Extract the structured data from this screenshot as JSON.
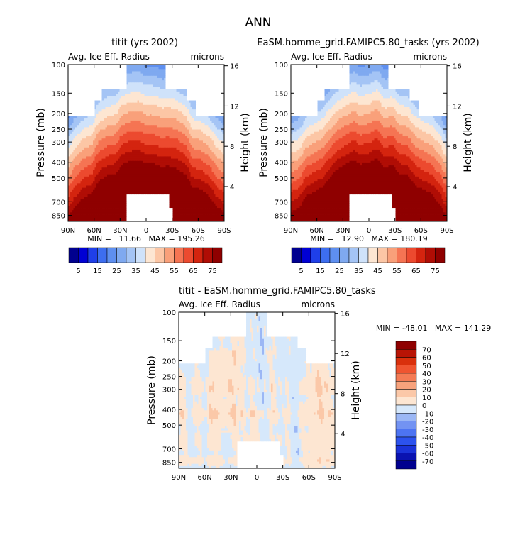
{
  "figure": {
    "title": "ANN"
  },
  "chart_data": [
    {
      "type": "heatmap",
      "title": "titit (yrs 2002)",
      "subtitle_left": "Avg. Ice Eff. Radius",
      "subtitle_right": "microns",
      "xlabel": "",
      "ylabel": "Pressure (mb)",
      "y2label": "Height (km)",
      "x_ticks": [
        "90N",
        "60N",
        "30N",
        "0",
        "30S",
        "60S",
        "90S"
      ],
      "y_ticks": [
        "100",
        "150",
        "200",
        "250",
        "300",
        "400",
        "500",
        "700",
        "850"
      ],
      "y2_ticks": [
        "16",
        "12",
        "8",
        "4"
      ],
      "stats": "MIN =   11.66   MAX = 195.26",
      "colorbar_labels": [
        "5",
        "15",
        "25",
        "35",
        "45",
        "55",
        "65",
        "75"
      ],
      "colorbar_levels": [
        5,
        10,
        15,
        20,
        25,
        30,
        35,
        40,
        45,
        50,
        55,
        60,
        65,
        70,
        75
      ],
      "min": 11.66,
      "max": 195.26,
      "lat_range": [
        90,
        -90
      ],
      "pressure_range": [
        100,
        925
      ]
    },
    {
      "type": "heatmap",
      "title": "EaSM.homme_grid.FAMIPC5.80_tasks (yrs 2002)",
      "subtitle_left": "Avg. Ice Eff. Radius",
      "subtitle_right": "microns",
      "xlabel": "",
      "ylabel": "Pressure (mb)",
      "y2label": "Height (km)",
      "x_ticks": [
        "90N",
        "60N",
        "30N",
        "0",
        "30S",
        "60S",
        "90S"
      ],
      "y_ticks": [
        "100",
        "150",
        "200",
        "250",
        "300",
        "400",
        "500",
        "700",
        "850"
      ],
      "y2_ticks": [
        "16",
        "12",
        "8",
        "4"
      ],
      "stats": "MIN =   12.90   MAX = 180.19",
      "colorbar_labels": [
        "5",
        "15",
        "25",
        "35",
        "45",
        "55",
        "65",
        "75"
      ],
      "colorbar_levels": [
        5,
        10,
        15,
        20,
        25,
        30,
        35,
        40,
        45,
        50,
        55,
        60,
        65,
        70,
        75
      ],
      "min": 12.9,
      "max": 180.19,
      "lat_range": [
        90,
        -90
      ],
      "pressure_range": [
        100,
        925
      ]
    },
    {
      "type": "heatmap",
      "title": "titit - EaSM.homme_grid.FAMIPC5.80_tasks",
      "subtitle_left": "Avg. Ice Eff. Radius",
      "subtitle_right": "microns",
      "xlabel": "",
      "ylabel": "Pressure (mb)",
      "y2label": "Height (km)",
      "x_ticks": [
        "90N",
        "60N",
        "30N",
        "0",
        "30S",
        "60S",
        "90S"
      ],
      "y_ticks": [
        "100",
        "150",
        "200",
        "250",
        "300",
        "400",
        "500",
        "700",
        "850"
      ],
      "y2_ticks": [
        "16",
        "12",
        "8",
        "4"
      ],
      "stats": "MIN = -48.01   MAX = 141.29",
      "colorbar_labels": [
        "70",
        "60",
        "50",
        "40",
        "30",
        "20",
        "10",
        "0",
        "-10",
        "-20",
        "-30",
        "-40",
        "-50",
        "-60",
        "-70"
      ],
      "colorbar_levels": [
        70,
        60,
        50,
        40,
        30,
        20,
        10,
        0,
        -10,
        -20,
        -30,
        -40,
        -50,
        -60,
        -70
      ],
      "min": -48.01,
      "max": 141.29,
      "lat_range": [
        90,
        -90
      ],
      "pressure_range": [
        100,
        925
      ]
    }
  ],
  "colors": {
    "blue_red_16": [
      "#00008f",
      "#0000d4",
      "#1f3fe8",
      "#3d6ef0",
      "#5e8ff0",
      "#7fa9f0",
      "#a4c4f5",
      "#cfe2fa",
      "#fde6d2",
      "#fcc6a5",
      "#f9a07a",
      "#f57453",
      "#ec4a2f",
      "#d4240f",
      "#b00d05",
      "#8f0000"
    ],
    "diff_16": [
      "#00008f",
      "#0a12b0",
      "#1a32d8",
      "#2c52ee",
      "#4d74f2",
      "#7393f2",
      "#9bb7f5",
      "#d6e8fb",
      "#fde6d2",
      "#fbc8a8",
      "#f7a27c",
      "#f47b55",
      "#ef5430",
      "#d9300c",
      "#b81405",
      "#8f0000"
    ],
    "blank": "#ffffff"
  }
}
